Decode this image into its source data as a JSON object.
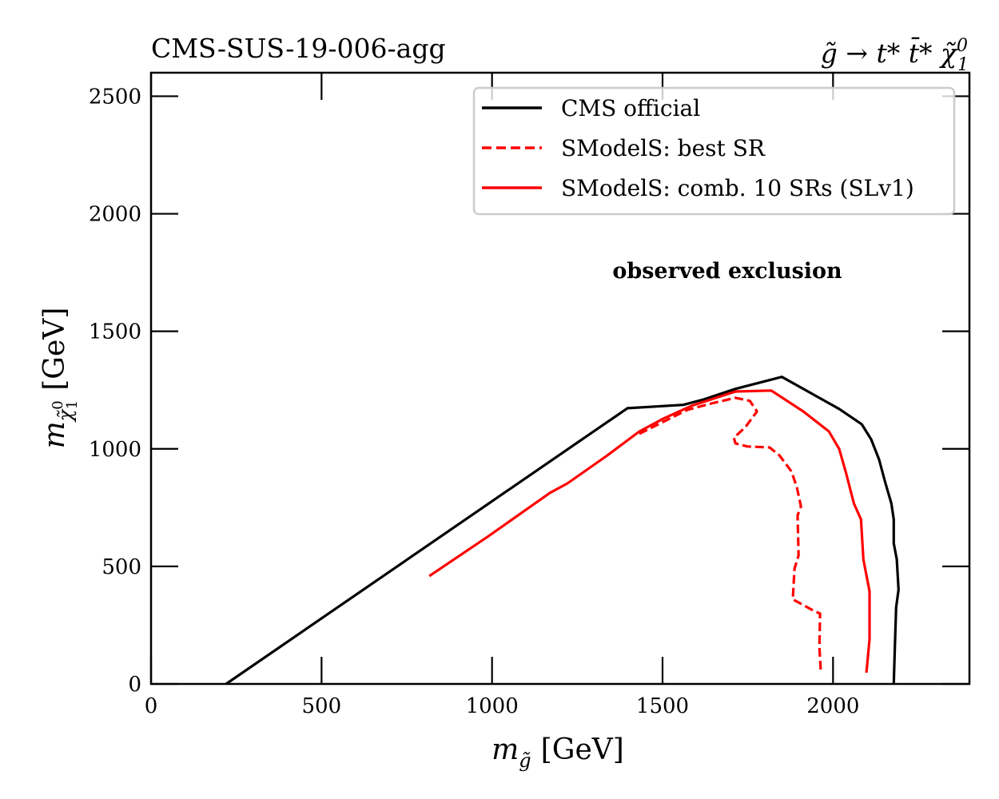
{
  "chart_data": {
    "type": "line",
    "title_left": "CMS-SUS-19-006-agg",
    "title_right": {
      "text": "g̃ → t* t̄* χ̃",
      "superscript": "0",
      "subscript": "1"
    },
    "xlabel": {
      "symbol": "m",
      "subscript": "g̃",
      "unit": "[GeV]"
    },
    "ylabel": {
      "symbol": "m",
      "subscript": "χ̃",
      "sub_superscript": "0",
      "sub_subscript": "1",
      "unit": "[GeV]"
    },
    "xlim": [
      0,
      2400
    ],
    "ylim": [
      0,
      2600
    ],
    "xticks": [
      0,
      500,
      1000,
      1500,
      2000
    ],
    "yticks": [
      0,
      500,
      1000,
      1500,
      2000,
      2500
    ],
    "xtick_labels": [
      "0",
      "500",
      "1000",
      "1500",
      "2000"
    ],
    "ytick_labels": [
      "0",
      "500",
      "1000",
      "1500",
      "2000",
      "2500"
    ],
    "grid": false,
    "tick_direction": "in",
    "ticks_on_all_sides": true,
    "annotation": "observed exclusion",
    "legend": {
      "position": "top-right",
      "entries": [
        {
          "label": "CMS official",
          "color": "#000000",
          "style": "solid"
        },
        {
          "label": "SModelS: best SR",
          "color": "#ff0000",
          "style": "dashed"
        },
        {
          "label": "SModelS: comb. 10 SRs (SLv1)",
          "color": "#ff0000",
          "style": "solid"
        }
      ]
    },
    "series": [
      {
        "name": "CMS official",
        "color": "#000000",
        "style": "solid",
        "x": [
          220,
          1397,
          1561,
          1620,
          1714,
          1850,
          2018,
          2084,
          2112,
          2135,
          2154,
          2171,
          2178,
          2178,
          2187,
          2192,
          2185,
          2182,
          2178
        ],
        "y": [
          0,
          1173,
          1187,
          1210,
          1255,
          1306,
          1170,
          1105,
          1040,
          955,
          853,
          768,
          700,
          598,
          530,
          401,
          326,
          190,
          0
        ]
      },
      {
        "name": "SModelS: best SR",
        "color": "#ff0000",
        "style": "dashed",
        "x": [
          1432,
          1573,
          1643,
          1714,
          1756,
          1777,
          1742,
          1709,
          1714,
          1749,
          1814,
          1843,
          1878,
          1894,
          1906,
          1896,
          1899,
          1887,
          1882,
          1941,
          1962,
          1960,
          1964
        ],
        "y": [
          1064,
          1166,
          1193,
          1217,
          1204,
          1159,
          1091,
          1047,
          1023,
          1010,
          1006,
          972,
          904,
          836,
          755,
          717,
          547,
          490,
          360,
          313,
          299,
          156,
          54
        ]
      },
      {
        "name": "SModelS: comb. 10 SRs (SLv1)",
        "color": "#ff0000",
        "style": "solid",
        "x": [
          816,
          987,
          1170,
          1221,
          1338,
          1432,
          1503,
          1585,
          1714,
          1819,
          1913,
          1988,
          2018,
          2037,
          2061,
          2082,
          2089,
          2107,
          2107,
          2098
        ],
        "y": [
          459,
          626,
          813,
          853,
          972,
          1074,
          1129,
          1183,
          1244,
          1248,
          1159,
          1074,
          1000,
          904,
          768,
          700,
          530,
          394,
          190,
          48
        ]
      }
    ]
  }
}
